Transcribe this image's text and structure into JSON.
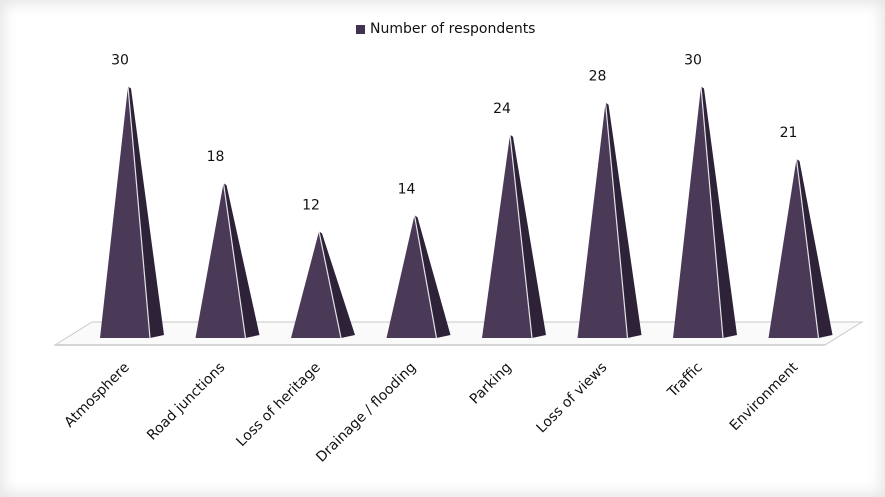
{
  "chart_data": {
    "type": "bar",
    "style": "3d-pyramid",
    "categories": [
      "Atmosphere",
      "Road junctions",
      "Loss of heritage",
      "Drainage / flooding",
      "Parking",
      "Loss of views",
      "Traffic",
      "Environment"
    ],
    "series": [
      {
        "name": "Number of respondents",
        "values": [
          30,
          18,
          12,
          14,
          24,
          28,
          30,
          21
        ]
      }
    ],
    "title": "",
    "xlabel": "",
    "ylabel": "",
    "ylim": [
      0,
      32
    ],
    "grid": false,
    "legend": "top-center",
    "show_value_labels": true,
    "colors": {
      "front": "#4a3a58",
      "side": "#2e2238",
      "edge": "#ffffff",
      "floor_top": "#fafafa",
      "floor_edge": "#c8c8c8",
      "legend_swatch": "#3f3350"
    }
  }
}
